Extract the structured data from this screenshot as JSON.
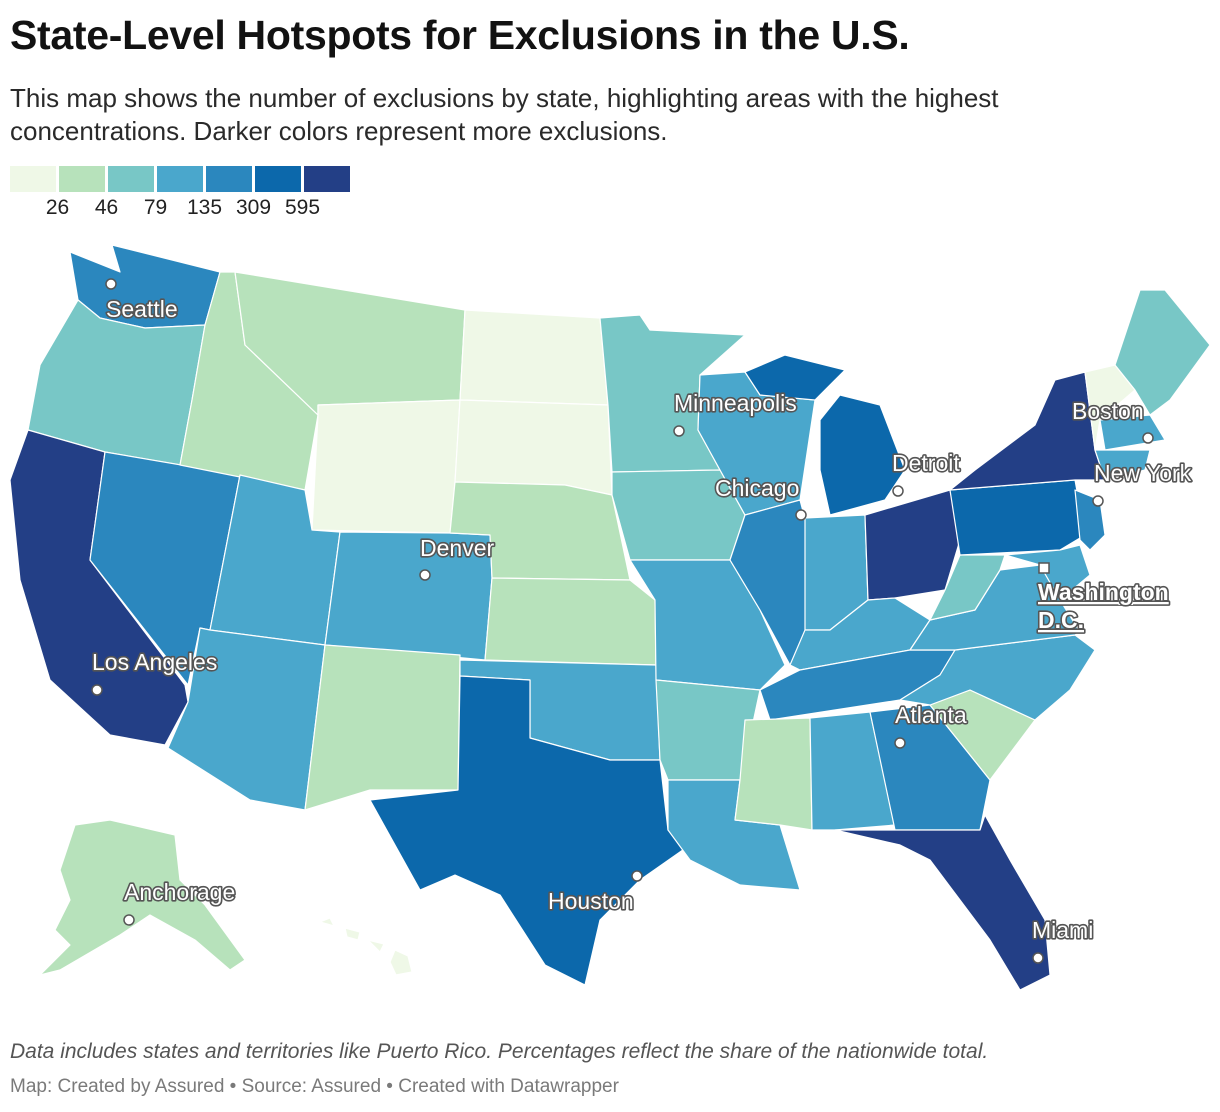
{
  "title": "State-Level Hotspots for Exclusions in the U.S.",
  "subtitle": "This map shows the number of exclusions by state, highlighting areas with the highest concentrations. Darker colors represent more exclusions.",
  "legend": {
    "colors": [
      "#eff8e7",
      "#b7e2bb",
      "#78c7c6",
      "#4aa7cc",
      "#2b87be",
      "#0c68ab",
      "#233f86"
    ],
    "ticks": [
      "26",
      "46",
      "79",
      "135",
      "309",
      "595"
    ]
  },
  "cities": [
    {
      "name": "Seattle"
    },
    {
      "name": "Minneapolis"
    },
    {
      "name": "Boston"
    },
    {
      "name": "Detroit"
    },
    {
      "name": "New York"
    },
    {
      "name": "Chicago"
    },
    {
      "name": "Denver"
    },
    {
      "name": "Washington D.C."
    },
    {
      "name": "Los Angeles"
    },
    {
      "name": "Atlanta"
    },
    {
      "name": "Anchorage"
    },
    {
      "name": "Houston"
    },
    {
      "name": "Miami"
    }
  ],
  "notes": "Data includes states and territories like Puerto Rico. Percentages reflect the share of the nationwide total.",
  "source": "Map: Created by Assured • Source: Assured • Created with Datawrapper"
}
